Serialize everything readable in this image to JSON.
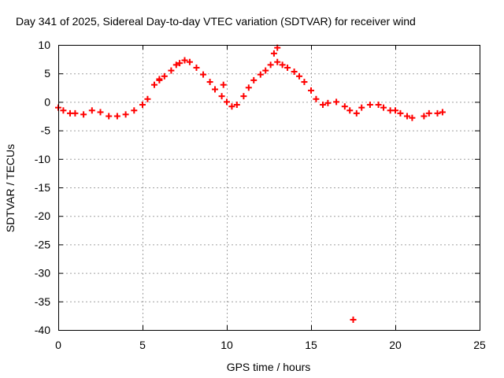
{
  "chart_data": {
    "type": "scatter",
    "title": "Day 341 of 2025, Sidereal Day-to-day VTEC variation (SDTVAR) for receiver wind",
    "xlabel": "GPS time / hours",
    "ylabel": "SDTVAR / TECUs",
    "xlim": [
      0,
      25
    ],
    "ylim": [
      -40,
      10
    ],
    "xticks": [
      0,
      5,
      10,
      15,
      20,
      25
    ],
    "yticks": [
      -40,
      -35,
      -30,
      -25,
      -20,
      -15,
      -10,
      -5,
      0,
      5,
      10
    ],
    "grid": true,
    "marker": "+",
    "colors": {
      "series": "#ff0000",
      "grid": "#a0a0a0",
      "axis": "#000000"
    },
    "series": [
      {
        "name": "SDTVAR",
        "points": [
          [
            0.0,
            -1.0
          ],
          [
            0.3,
            -1.5
          ],
          [
            0.7,
            -2.0
          ],
          [
            1.0,
            -2.0
          ],
          [
            1.5,
            -2.2
          ],
          [
            2.0,
            -1.5
          ],
          [
            2.5,
            -1.8
          ],
          [
            3.0,
            -2.5
          ],
          [
            3.5,
            -2.5
          ],
          [
            4.0,
            -2.2
          ],
          [
            4.5,
            -1.5
          ],
          [
            5.0,
            -0.5
          ],
          [
            5.3,
            0.5
          ],
          [
            5.7,
            3.0
          ],
          [
            6.0,
            4.0
          ],
          [
            6.3,
            4.5
          ],
          [
            6.7,
            5.5
          ],
          [
            7.0,
            6.5
          ],
          [
            7.5,
            7.3
          ],
          [
            7.8,
            7.0
          ],
          [
            8.2,
            6.0
          ],
          [
            8.6,
            4.8
          ],
          [
            9.0,
            3.5
          ],
          [
            9.3,
            2.2
          ],
          [
            9.7,
            1.0
          ],
          [
            10.0,
            0.0
          ],
          [
            10.3,
            -0.8
          ],
          [
            10.6,
            -0.5
          ],
          [
            11.0,
            1.0
          ],
          [
            11.3,
            2.5
          ],
          [
            11.6,
            3.8
          ],
          [
            12.0,
            4.8
          ],
          [
            12.3,
            5.5
          ],
          [
            12.6,
            6.5
          ],
          [
            13.0,
            7.0
          ],
          [
            13.3,
            6.5
          ],
          [
            13.6,
            6.0
          ],
          [
            14.0,
            5.3
          ],
          [
            14.3,
            4.5
          ],
          [
            14.6,
            3.5
          ],
          [
            15.0,
            2.0
          ],
          [
            15.3,
            0.5
          ],
          [
            15.7,
            -0.5
          ],
          [
            16.0,
            -0.2
          ],
          [
            16.5,
            0.0
          ],
          [
            17.0,
            -0.8
          ],
          [
            17.3,
            -1.5
          ],
          [
            17.7,
            -2.0
          ],
          [
            18.0,
            -1.0
          ],
          [
            18.5,
            -0.5
          ],
          [
            19.0,
            -0.5
          ],
          [
            19.3,
            -1.0
          ],
          [
            19.7,
            -1.5
          ],
          [
            20.0,
            -1.5
          ],
          [
            20.3,
            -2.0
          ],
          [
            20.7,
            -2.5
          ],
          [
            21.0,
            -2.8
          ],
          [
            21.7,
            -2.5
          ],
          [
            22.0,
            -2.0
          ],
          [
            22.5,
            -2.0
          ],
          [
            22.8,
            -1.8
          ],
          [
            13.0,
            9.5
          ],
          [
            12.8,
            8.5
          ],
          [
            7.2,
            6.8
          ],
          [
            6.0,
            3.8
          ],
          [
            9.8,
            3.0
          ],
          [
            17.5,
            -38.2
          ]
        ]
      }
    ]
  }
}
